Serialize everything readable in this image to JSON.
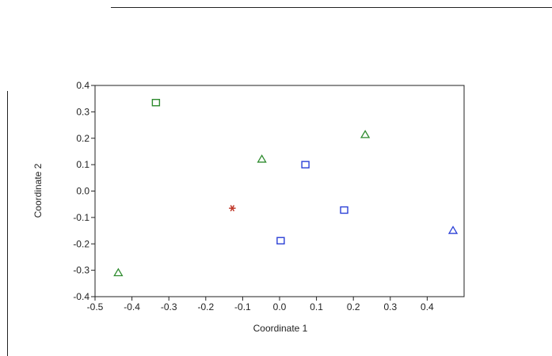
{
  "chart_data": {
    "type": "scatter",
    "title": "",
    "xlabel": "Coordinate 1",
    "ylabel": "Coordinate 2",
    "xlim": [
      -0.5,
      0.5
    ],
    "ylim": [
      -0.4,
      0.4
    ],
    "x_ticks": [
      -0.5,
      -0.4,
      -0.3,
      -0.2,
      -0.1,
      0.0,
      0.1,
      0.2,
      0.3,
      0.4
    ],
    "x_tick_labels": [
      "-0.5",
      "-0.4",
      "-0.3",
      "-0.2",
      "-0.1",
      "0.0",
      "0.1",
      "0.2",
      "0.3",
      "0.4"
    ],
    "y_ticks": [
      0.4,
      0.3,
      0.2,
      0.1,
      0.0,
      -0.1,
      -0.2,
      -0.3,
      -0.4
    ],
    "y_tick_labels": [
      "0.4",
      "0.3",
      "0.2",
      "0.1",
      "0.0",
      "-0.1",
      "-0.2",
      "-0.3",
      "-0.4"
    ],
    "grid": false,
    "legend": "none",
    "points": [
      {
        "x": -0.335,
        "y": 0.335,
        "marker": "square",
        "color": "#2e8b2e"
      },
      {
        "x": 0.07,
        "y": 0.1,
        "marker": "square",
        "color": "#2a3fd6"
      },
      {
        "x": 0.175,
        "y": -0.072,
        "marker": "square",
        "color": "#2a3fd6"
      },
      {
        "x": 0.003,
        "y": -0.188,
        "marker": "square",
        "color": "#2a3fd6"
      },
      {
        "x": -0.048,
        "y": 0.12,
        "marker": "triangle",
        "color": "#2e8b2e"
      },
      {
        "x": 0.232,
        "y": 0.213,
        "marker": "triangle",
        "color": "#2e8b2e"
      },
      {
        "x": -0.437,
        "y": -0.31,
        "marker": "triangle",
        "color": "#2e8b2e"
      },
      {
        "x": 0.47,
        "y": -0.15,
        "marker": "triangle",
        "color": "#2a3fd6"
      },
      {
        "x": -0.128,
        "y": -0.065,
        "marker": "star",
        "color": "#c0392b"
      }
    ]
  }
}
